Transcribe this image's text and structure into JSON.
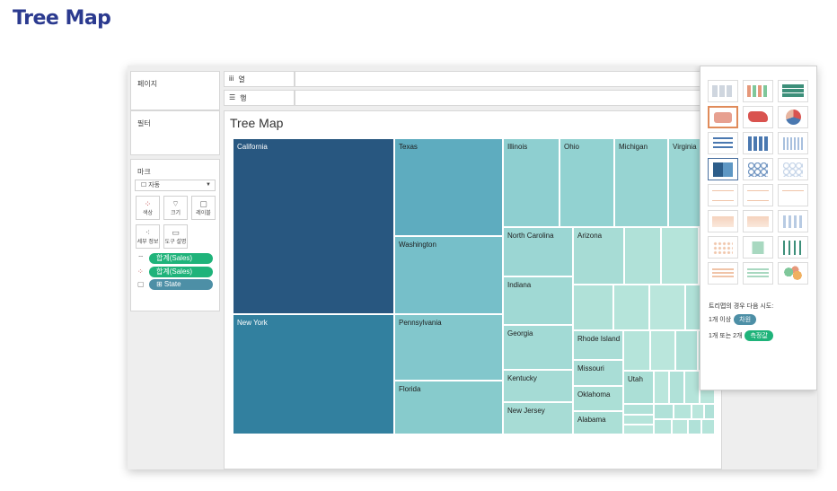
{
  "slide": {
    "title": "Tree Map"
  },
  "left": {
    "pages_label": "페이지",
    "filters_label": "필터",
    "marks_label": "마크",
    "mark_type": "자동",
    "buttons": [
      {
        "label": "색상",
        "icon": "color-icon"
      },
      {
        "label": "크기",
        "icon": "size-icon"
      },
      {
        "label": "레이블",
        "icon": "label-icon"
      },
      {
        "label": "세부 정보",
        "icon": "detail-icon"
      },
      {
        "label": "도구 설명",
        "icon": "tooltip-icon"
      }
    ],
    "pills": [
      {
        "text": "합계(Sales)",
        "icon": "size-icon",
        "color": "#1fb37a"
      },
      {
        "text": "합계(Sales)",
        "icon": "color-icon",
        "color": "#1fb37a"
      },
      {
        "text": "⊞ State",
        "icon": "label-icon",
        "color": "#4d8fa6"
      }
    ]
  },
  "shelves": {
    "columns": "열",
    "rows": "행"
  },
  "viz": {
    "title": "Tree Map",
    "states": [
      {
        "name": "California",
        "color": "#285780"
      },
      {
        "name": "Texas",
        "color": "#5eacbf"
      },
      {
        "name": "Washington",
        "color": "#76bfc9"
      },
      {
        "name": "New York",
        "color": "#32809f"
      },
      {
        "name": "Pennsylvania",
        "color": "#82c7cc"
      },
      {
        "name": "Florida",
        "color": "#87cbcc"
      },
      {
        "name": "Illinois",
        "color": "#8ecfd0"
      },
      {
        "name": "Ohio",
        "color": "#92d2d1"
      },
      {
        "name": "Michigan",
        "color": "#97d4d2"
      },
      {
        "name": "Virginia",
        "color": "#9bd6d3"
      },
      {
        "name": "North Carolina",
        "color": "#9bd6d3"
      },
      {
        "name": "Indiana",
        "color": "#a0d9d4"
      },
      {
        "name": "Georgia",
        "color": "#a2dad5"
      },
      {
        "name": "Kentucky",
        "color": "#a5dbd5"
      },
      {
        "name": "New Jersey",
        "color": "#a7dcd5"
      },
      {
        "name": "Arizona",
        "color": "#a7dcd5"
      },
      {
        "name": "Rhode Island",
        "color": "#a9ddd6"
      },
      {
        "name": "Missouri",
        "color": "#a9ddd6"
      },
      {
        "name": "Oklahoma",
        "color": "#abdfd6"
      },
      {
        "name": "Alabama",
        "color": "#abdfd6"
      },
      {
        "name": "Utah",
        "color": "#abdfd6"
      }
    ],
    "small_color": "#b2e2d9"
  },
  "showme": {
    "hint_title": "트리맵의 경우 다음 시도:",
    "hint1_prefix": "1개 이상",
    "hint1_pill": "차원",
    "hint1_color": "#4d8fa6",
    "hint2_prefix": "1개 또는 2개",
    "hint2_pill": "측정값",
    "hint2_color": "#1fb37a"
  }
}
